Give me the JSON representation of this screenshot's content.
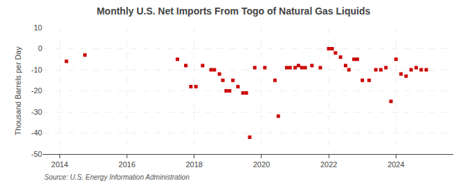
{
  "chart_data": {
    "type": "scatter",
    "title": "Monthly U.S. Net Imports From Togo of Natural Gas Liquids",
    "ylabel": "Thousand Barrels per Day",
    "source": "Source: U.S. Energy Information Administration",
    "color": "#cc0000",
    "marker": "square",
    "grid": true,
    "xlim": [
      2013.5,
      2025.7
    ],
    "xticks": [
      2014,
      2016,
      2018,
      2020,
      2022,
      2024
    ],
    "ylim": [
      -50,
      10
    ],
    "yticks": [
      10,
      0,
      -10,
      -20,
      -30,
      -40,
      -50
    ],
    "x": [
      2014.2,
      2014.75,
      2017.5,
      2017.75,
      2017.9,
      2018.05,
      2018.25,
      2018.5,
      2018.6,
      2018.75,
      2018.85,
      2018.95,
      2019.05,
      2019.15,
      2019.3,
      2019.45,
      2019.55,
      2019.65,
      2019.8,
      2020.1,
      2020.4,
      2020.5,
      2020.75,
      2020.85,
      2021.0,
      2021.1,
      2021.2,
      2021.3,
      2021.5,
      2021.75,
      2022.0,
      2022.1,
      2022.2,
      2022.35,
      2022.5,
      2022.6,
      2022.75,
      2022.85,
      2023.0,
      2023.2,
      2023.4,
      2023.55,
      2023.7,
      2023.85,
      2024.0,
      2024.15,
      2024.3,
      2024.45,
      2024.6,
      2024.75,
      2024.9
    ],
    "values": [
      -6,
      -3,
      -5,
      -8,
      -18,
      -18,
      -8,
      -10,
      -10,
      -12,
      -15,
      -20,
      -20,
      -15,
      -18,
      -21,
      -21,
      -42,
      -9,
      -9,
      -15,
      -32,
      -9,
      -9,
      -9,
      -8,
      -9,
      -9,
      -8,
      -9,
      0,
      0,
      -2,
      -4,
      -8,
      -10,
      -5,
      -5,
      -15,
      -15,
      -10,
      -10,
      -9,
      -25,
      -5,
      -12,
      -13,
      -10,
      -9,
      -10,
      -10
    ]
  }
}
